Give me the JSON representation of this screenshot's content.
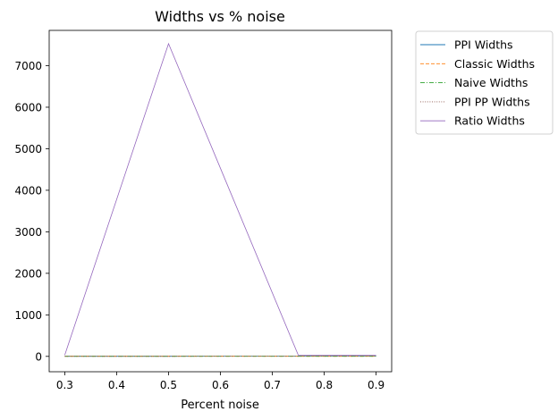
{
  "chart_data": {
    "type": "line",
    "title": "Widths vs % noise",
    "xlabel": "Percent noise",
    "ylabel": "",
    "x": [
      0.3,
      0.5,
      0.75,
      0.9
    ],
    "xlim": [
      0.27,
      0.93
    ],
    "ylim": [
      -370,
      7850
    ],
    "xticks": [
      0.3,
      0.4,
      0.5,
      0.6,
      0.7,
      0.8,
      0.9
    ],
    "xtick_labels": [
      "0.3",
      "0.4",
      "0.5",
      "0.6",
      "0.7",
      "0.8",
      "0.9"
    ],
    "yticks": [
      0,
      1000,
      2000,
      3000,
      4000,
      5000,
      6000,
      7000
    ],
    "ytick_labels": [
      "0",
      "1000",
      "2000",
      "3000",
      "4000",
      "5000",
      "6000",
      "7000"
    ],
    "grid": false,
    "legend_position": "outside-top-right",
    "series": [
      {
        "name": "PPI Widths",
        "values": [
          3,
          3,
          4,
          4
        ],
        "color": "#1f77b4",
        "dash": "solid"
      },
      {
        "name": "Classic Widths",
        "values": [
          2,
          2,
          3,
          3
        ],
        "color": "#ff7f0e",
        "dash": "dashed"
      },
      {
        "name": "Naive Widths",
        "values": [
          1,
          1,
          2,
          2
        ],
        "color": "#2ca02c",
        "dash": "dashdot"
      },
      {
        "name": "PPI PP Widths",
        "values": [
          3,
          3,
          4,
          4
        ],
        "color": "#8c564b",
        "dash": "dotted"
      },
      {
        "name": "Ratio Widths",
        "values": [
          30,
          7530,
          30,
          30
        ],
        "color": "#9467bd",
        "dash": "solid"
      }
    ]
  }
}
